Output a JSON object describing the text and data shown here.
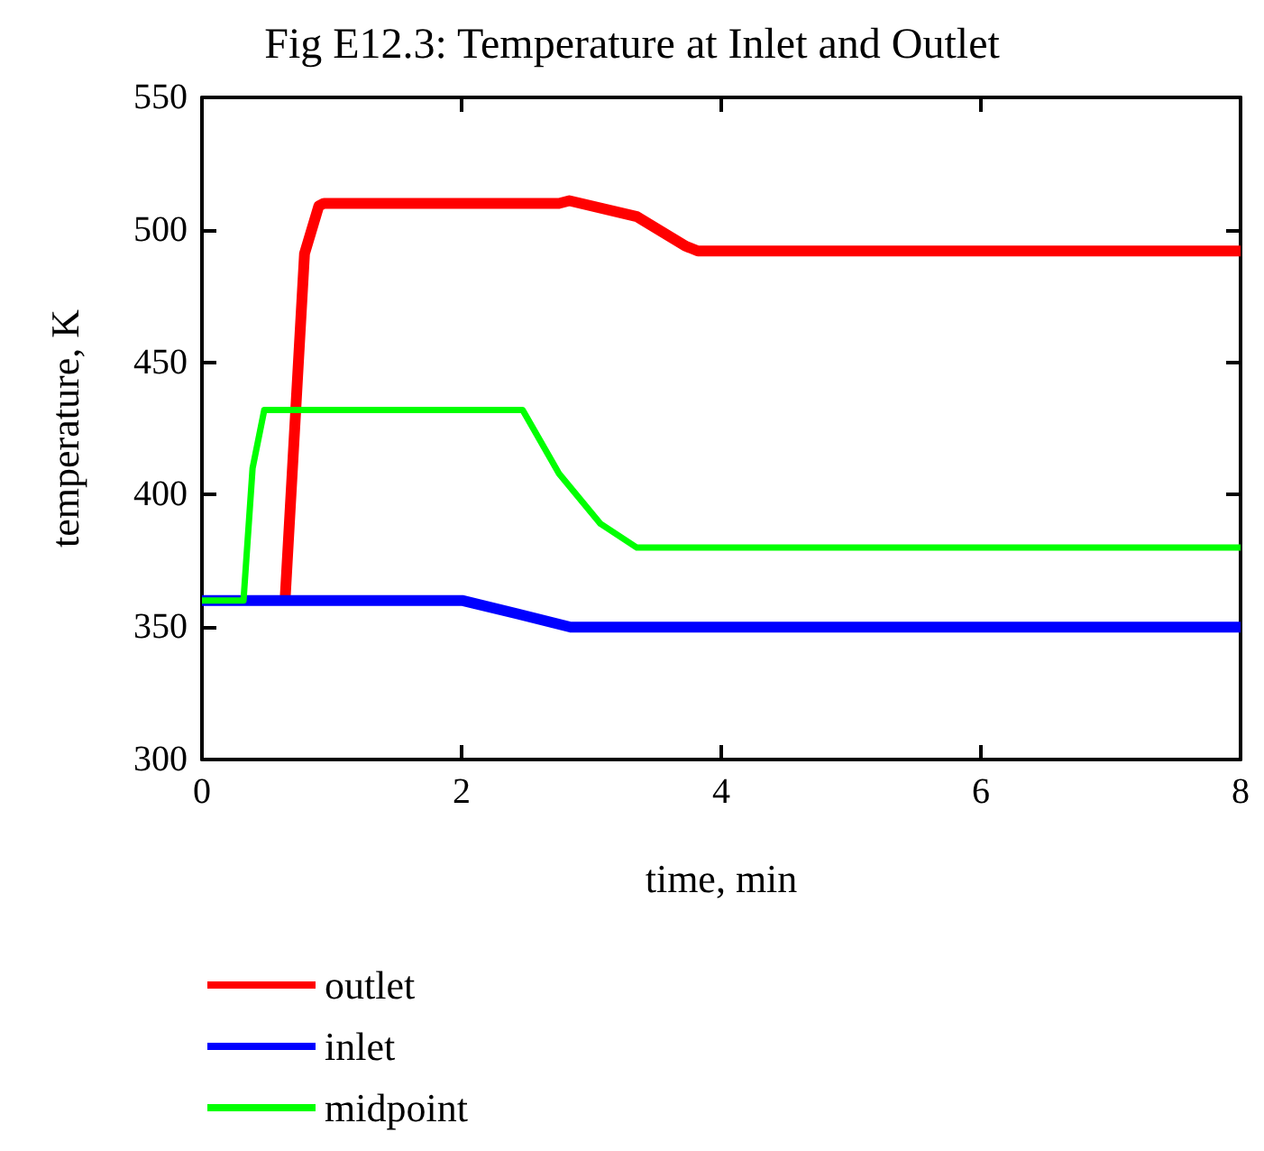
{
  "chart_data": {
    "type": "line",
    "title": "Fig E12.3: Temperature at Inlet and Outlet",
    "xlabel": "time, min",
    "ylabel": "temperature, K",
    "xlim": [
      0,
      8
    ],
    "xticks": [
      0,
      2,
      4,
      6,
      8
    ],
    "ylim": [
      300,
      550
    ],
    "yticks": [
      300,
      350,
      400,
      450,
      500,
      550
    ],
    "grid": false,
    "legend": "bottom",
    "marker": "none",
    "line_style": "solid",
    "series": [
      {
        "name": "outlet",
        "color": "#ff0000",
        "x": [
          0.64,
          0.79,
          0.9,
          0.94,
          2.75,
          2.83,
          3.35,
          3.72,
          3.82,
          8
        ],
        "values": [
          360,
          491,
          509,
          510,
          510,
          511,
          505,
          494,
          492,
          492
        ]
      },
      {
        "name": "inlet",
        "color": "#0000ff",
        "x": [
          0,
          2.01,
          2.43,
          2.84,
          8
        ],
        "values": [
          360,
          360,
          355,
          350,
          350
        ]
      },
      {
        "name": "midpoint",
        "color": "#00ff00",
        "x": [
          0,
          0.32,
          0.39,
          0.48,
          2.38,
          2.47,
          2.75,
          3.07,
          3.35,
          8
        ],
        "values": [
          360,
          360,
          410,
          432,
          432,
          432,
          408,
          389,
          380,
          380
        ]
      }
    ]
  }
}
